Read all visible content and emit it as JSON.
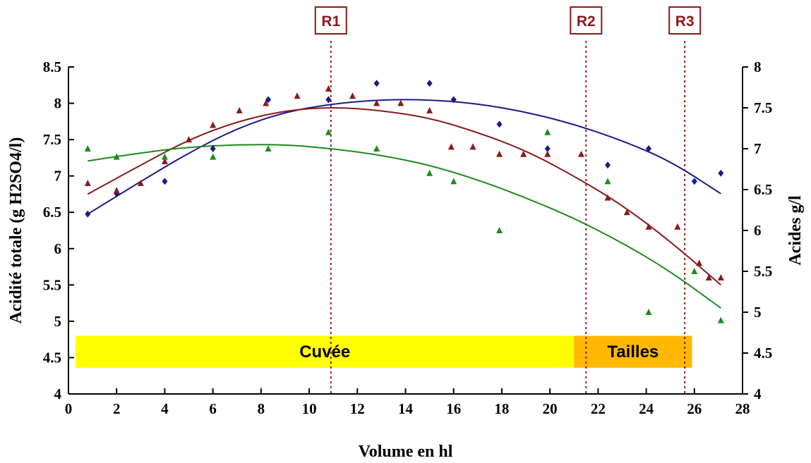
{
  "chart_data": {
    "type": "scatter",
    "xlabel": "Volume en hl",
    "ylabel_left": "Acidité totale (g H2SO4/l)",
    "ylabel_right": "Acides g/l",
    "xlim": [
      0,
      28
    ],
    "ylim_left": [
      4,
      8.5
    ],
    "ylim_right": [
      4,
      8
    ],
    "x_ticks": [
      "0",
      "2",
      "4",
      "6",
      "8",
      "10",
      "12",
      "14",
      "16",
      "18",
      "20",
      "22",
      "24",
      "26",
      "28"
    ],
    "y_ticks_left": [
      "4",
      "4.5",
      "5",
      "5.5",
      "6",
      "6.5",
      "7",
      "7.5",
      "8",
      "8.5"
    ],
    "y_ticks_right": [
      "4",
      "4.5",
      "5",
      "5.5",
      "6",
      "6.5",
      "7",
      "7.5",
      "8"
    ],
    "grid": false,
    "markers": [
      {
        "label": "R1",
        "x": 10.9
      },
      {
        "label": "R2",
        "x": 21.5
      },
      {
        "label": "R3",
        "x": 25.6
      }
    ],
    "bands": [
      {
        "label": "Cuvée",
        "x_start": 0.3,
        "x_end": 21,
        "color": "#ffff00"
      },
      {
        "label": "Tailles",
        "x_start": 21,
        "x_end": 25.9,
        "color": "#ffb800"
      }
    ],
    "series": [
      {
        "color": "#1a1a8c",
        "marker": "diamond",
        "axis": "right",
        "points": [
          [
            0.8,
            6.2
          ],
          [
            2,
            6.45
          ],
          [
            4,
            6.6
          ],
          [
            6,
            7
          ],
          [
            8.3,
            7.6
          ],
          [
            10.8,
            7.6
          ],
          [
            12.8,
            7.8
          ],
          [
            15,
            7.8
          ],
          [
            16,
            7.6
          ],
          [
            17.9,
            7.3
          ],
          [
            19.9,
            7
          ],
          [
            22.4,
            6.8
          ],
          [
            24.1,
            7
          ],
          [
            26,
            6.6
          ],
          [
            27.1,
            6.7
          ]
        ],
        "fit": [
          [
            0.8,
            6.2
          ],
          [
            3,
            6.6
          ],
          [
            5,
            6.95
          ],
          [
            7,
            7.25
          ],
          [
            9,
            7.45
          ],
          [
            11,
            7.55
          ],
          [
            13,
            7.6
          ],
          [
            15,
            7.6
          ],
          [
            17,
            7.55
          ],
          [
            19,
            7.45
          ],
          [
            21,
            7.3
          ],
          [
            23,
            7.1
          ],
          [
            25,
            6.85
          ],
          [
            27.1,
            6.45
          ]
        ]
      },
      {
        "color": "#8b1a1a",
        "marker": "triangle",
        "axis": "left",
        "points": [
          [
            0.8,
            6.9
          ],
          [
            2,
            6.8
          ],
          [
            3,
            6.9
          ],
          [
            4,
            7.2
          ],
          [
            5,
            7.5
          ],
          [
            6,
            7.7
          ],
          [
            7.1,
            7.9
          ],
          [
            8.2,
            8
          ],
          [
            9.5,
            8.1
          ],
          [
            10.8,
            8.2
          ],
          [
            11.8,
            8.1
          ],
          [
            12.8,
            8
          ],
          [
            13.8,
            8
          ],
          [
            15,
            7.9
          ],
          [
            15.9,
            7.4
          ],
          [
            16.8,
            7.4
          ],
          [
            17.9,
            7.3
          ],
          [
            18.9,
            7.3
          ],
          [
            19.9,
            7.3
          ],
          [
            21.3,
            7.3
          ],
          [
            22.4,
            6.7
          ],
          [
            23.2,
            6.5
          ],
          [
            24.1,
            6.3
          ],
          [
            25.3,
            6.3
          ],
          [
            26.2,
            5.8
          ],
          [
            26.6,
            5.6
          ],
          [
            27.1,
            5.6
          ]
        ],
        "fit": [
          [
            0.8,
            6.75
          ],
          [
            3,
            7.15
          ],
          [
            5,
            7.5
          ],
          [
            7,
            7.75
          ],
          [
            9,
            7.9
          ],
          [
            11,
            7.95
          ],
          [
            13,
            7.9
          ],
          [
            15,
            7.8
          ],
          [
            17,
            7.6
          ],
          [
            19,
            7.35
          ],
          [
            21,
            7.0
          ],
          [
            23,
            6.6
          ],
          [
            25,
            6.1
          ],
          [
            27.1,
            5.5
          ]
        ]
      },
      {
        "color": "#1a8c1a",
        "marker": "triangle",
        "axis": "right",
        "points": [
          [
            0.8,
            7
          ],
          [
            2,
            6.9
          ],
          [
            4,
            6.9
          ],
          [
            6,
            6.9
          ],
          [
            8.3,
            7
          ],
          [
            10.8,
            7.2
          ],
          [
            12.8,
            7
          ],
          [
            15,
            6.7
          ],
          [
            16,
            6.6
          ],
          [
            17.9,
            6
          ],
          [
            19.9,
            7.2
          ],
          [
            22.4,
            6.6
          ],
          [
            24.1,
            5
          ],
          [
            26,
            5.5
          ],
          [
            27.1,
            4.9
          ]
        ],
        "fit": [
          [
            0.8,
            6.85
          ],
          [
            3,
            6.95
          ],
          [
            5,
            7.02
          ],
          [
            7,
            7.05
          ],
          [
            9,
            7.05
          ],
          [
            11,
            7.0
          ],
          [
            13,
            6.92
          ],
          [
            15,
            6.8
          ],
          [
            17,
            6.62
          ],
          [
            19,
            6.4
          ],
          [
            21,
            6.15
          ],
          [
            23,
            5.85
          ],
          [
            25,
            5.5
          ],
          [
            27.1,
            5.05
          ]
        ]
      }
    ]
  }
}
